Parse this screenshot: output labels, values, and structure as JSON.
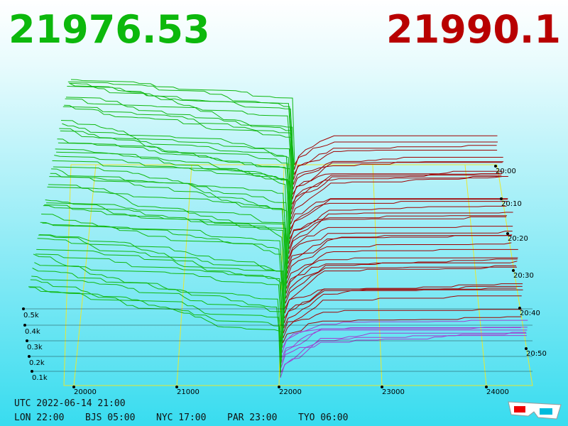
{
  "header": {
    "bid": "21976.53",
    "ask": "21990.1"
  },
  "price_axis": {
    "labels": [
      "20000",
      "21000",
      "22000",
      "23000",
      "24000"
    ]
  },
  "time_axis": {
    "labels": [
      "20:00",
      "20:10",
      "20:20",
      "20:30",
      "20:40",
      "20:50"
    ]
  },
  "depth_axis": {
    "labels": [
      "0.5k",
      "0.4k",
      "0.3k",
      "0.2k",
      "0.1k"
    ]
  },
  "footer": {
    "utc": "UTC 2022-06-14 21:00",
    "cities": [
      "LON 22:00",
      "BJS 05:00",
      "NYC 17:00",
      "PAR 23:00",
      "TYO 06:00"
    ]
  }
}
